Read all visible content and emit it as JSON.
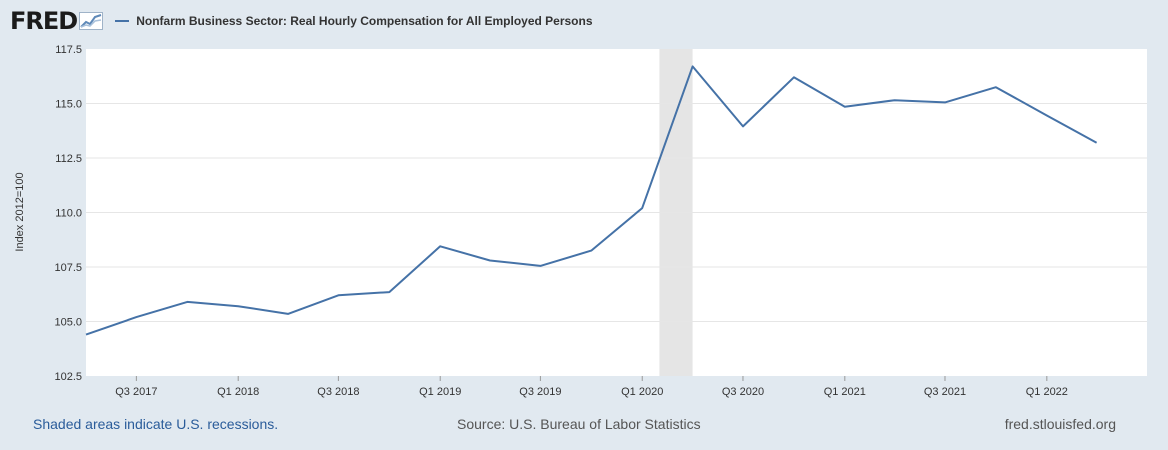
{
  "header": {
    "logo_text": "FRED",
    "legend_label": "Nonfarm Business Sector: Real Hourly Compensation for All Employed Persons"
  },
  "colors": {
    "background": "#e1e9f0",
    "plot_bg": "#ffffff",
    "series": "#4572a7",
    "recession": "#e5e5e5",
    "grid": "#e6e6e6"
  },
  "footer": {
    "recession_note": "Shaded areas indicate U.S. recessions.",
    "source": "Source: U.S. Bureau of Labor Statistics",
    "site": "fred.stlouisfed.org"
  },
  "chart_data": {
    "type": "line",
    "title": "",
    "xlabel": "",
    "ylabel": "Index 2012=100",
    "ylim": [
      102.5,
      117.5
    ],
    "yticks": [
      102.5,
      105.0,
      107.5,
      110.0,
      112.5,
      115.0,
      117.5
    ],
    "ytick_labels": [
      "102.5",
      "105.0",
      "107.5",
      "110.0",
      "112.5",
      "115.0",
      "117.5"
    ],
    "xlim": [
      "2017-04-01",
      "2022-07-01"
    ],
    "xticks": [
      "2017-07-01",
      "2018-01-01",
      "2018-07-01",
      "2019-01-01",
      "2019-07-01",
      "2020-01-01",
      "2020-07-01",
      "2021-01-01",
      "2021-07-01",
      "2022-01-01"
    ],
    "xtick_labels": [
      "Q3 2017",
      "Q1 2018",
      "Q3 2018",
      "Q1 2019",
      "Q3 2019",
      "Q1 2020",
      "Q3 2020",
      "Q1 2021",
      "Q3 2021",
      "Q1 2022"
    ],
    "recessions": [
      {
        "start": "2020-02-01",
        "end": "2020-04-01"
      }
    ],
    "grid": true,
    "legend": "top-left",
    "series": [
      {
        "x": [
          "2017-04-01",
          "2017-07-01",
          "2017-10-01",
          "2018-01-01",
          "2018-04-01",
          "2018-07-01",
          "2018-10-01",
          "2019-01-01",
          "2019-04-01",
          "2019-07-01",
          "2019-10-01",
          "2020-01-01",
          "2020-04-01",
          "2020-07-01",
          "2020-10-01",
          "2021-01-01",
          "2021-04-01",
          "2021-07-01",
          "2021-10-01",
          "2022-01-01",
          "2022-04-01"
        ],
        "values": [
          104.4,
          105.2,
          105.9,
          105.7,
          105.35,
          106.2,
          106.35,
          108.45,
          107.8,
          107.55,
          108.25,
          110.2,
          116.7,
          113.95,
          116.2,
          114.85,
          115.15,
          115.05,
          115.75,
          114.45,
          113.2
        ]
      }
    ]
  }
}
